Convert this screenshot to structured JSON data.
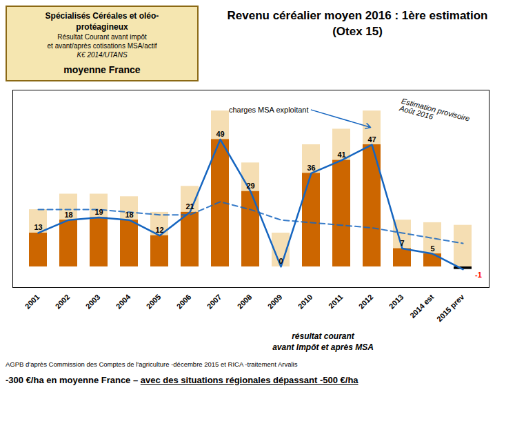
{
  "chart_data": {
    "type": "bar",
    "title": "Revenu céréalier moyen 2016 : 1ère estimation",
    "subtitle": "(Otex 15)",
    "categories": [
      "2001",
      "2002",
      "2003",
      "2004",
      "2005",
      "2006",
      "2007",
      "2008",
      "2009",
      "2010",
      "2011",
      "2012",
      "2013",
      "2014 est",
      "2015 prev"
    ],
    "series": [
      {
        "type": "bar",
        "color": "#F5DEB3",
        "values": [
          22,
          28,
          28,
          27,
          21,
          31,
          60,
          40,
          13,
          47,
          53,
          60,
          18,
          17,
          16
        ]
      },
      {
        "type": "bar",
        "colors": [
          "#CC6600",
          "#CC6600",
          "#CC6600",
          "#CC6600",
          "#CC6600",
          "#CC6600",
          "#CC6600",
          "#CC6600",
          "#CC6600",
          "#CC6600",
          "#CC6600",
          "#CC6600",
          "#CC6600",
          "#CC6600",
          "#000000"
        ],
        "values": [
          13,
          18,
          19,
          18,
          12,
          21,
          49,
          29,
          0,
          36,
          41,
          47,
          7,
          5,
          -1
        ],
        "data_labels": true
      },
      {
        "type": "line",
        "color": "#1565C0",
        "line_style": "solid",
        "values": [
          13,
          18,
          19,
          18,
          12,
          21,
          49,
          29,
          0,
          36,
          41,
          47,
          7,
          5,
          -1
        ]
      },
      {
        "type": "line",
        "color": "#1565C0",
        "line_style": "dashed",
        "values": [
          22,
          22,
          22,
          21,
          20,
          20,
          25,
          22,
          18,
          17,
          16,
          15,
          13,
          11,
          9
        ]
      }
    ],
    "stacked": false,
    "ylim": [
      -8,
      68
    ],
    "yticks": [],
    "grid": false,
    "tick_labels": "x",
    "annotations": [
      "Spécialisés Céréales et oléo-\nprotéagineux\nRésultat Courant avant impôt\net avant/après cotisations MSA/actif\nK€ 2014/UTANS\nmoyenne France",
      "charges MSA exploitant",
      "Estimation provisoire\nAoût 2016",
      "résultat courant\navant Impôt et après MSA",
      "AGPB d'après Commission des Comptes de l'agriculture -décembre 2015 et RICA -traitement Arvalis",
      "-300 €/ha en moyenne France – ",
      "avec des situations régionales dépassant -500 €/ha"
    ]
  }
}
